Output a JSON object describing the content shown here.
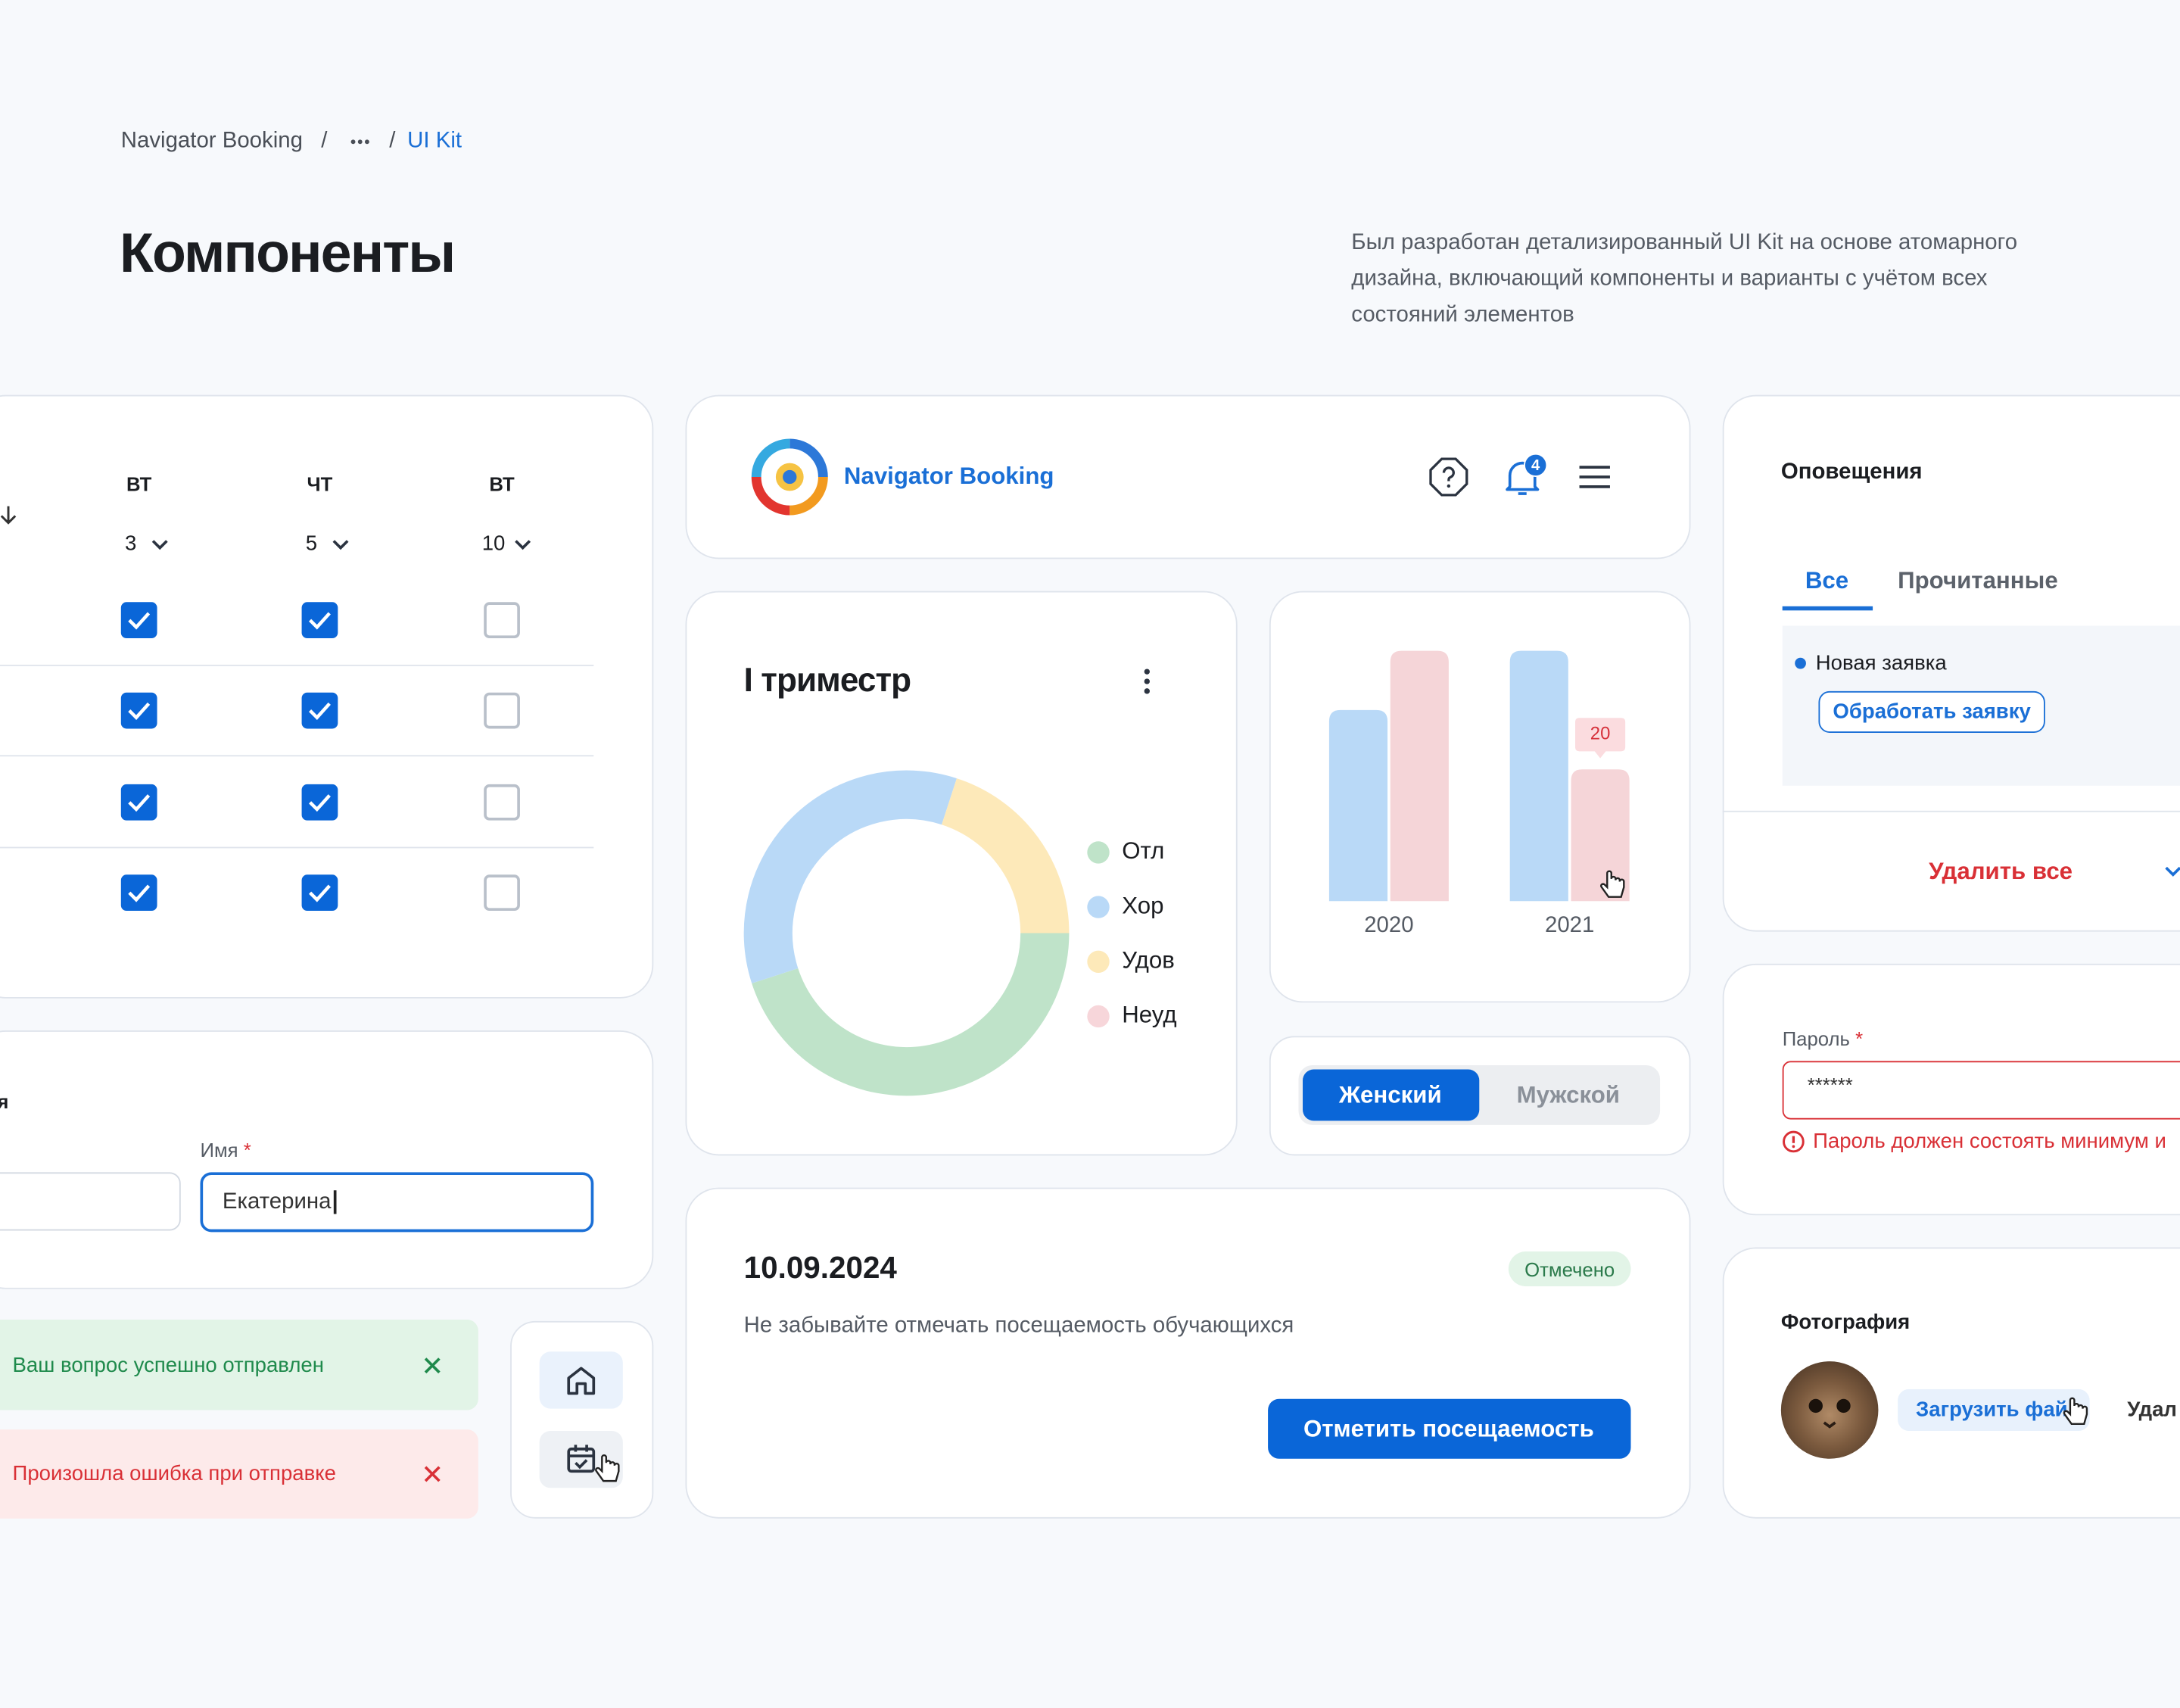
{
  "breadcrumb": {
    "items": [
      "Navigator Booking",
      "UI Kit"
    ],
    "separator": "/"
  },
  "header": {
    "title": "Компоненты",
    "description": "Был разработан детализированный UI Kit на основе атомарного дизайна, включающий компоненты и варианты с учётом всех состояний элементов"
  },
  "table": {
    "columns": [
      {
        "day": "ВТ",
        "number": 3
      },
      {
        "day": "ЧТ",
        "number": 5
      },
      {
        "day": "ВТ",
        "number": 10
      }
    ],
    "rows": [
      [
        true,
        true,
        false
      ],
      [
        true,
        true,
        false
      ],
      [
        true,
        true,
        false
      ],
      [
        true,
        true,
        false
      ]
    ]
  },
  "form": {
    "section": "я",
    "field_label": "Имя",
    "required": "*",
    "value": "Екатерина"
  },
  "alerts": [
    {
      "kind": "success",
      "text": "Ваш вопрос успешно отправлен"
    },
    {
      "kind": "error",
      "text": "Произошла ошибка при отправке"
    }
  ],
  "app_header": {
    "brand": "Navigator Booking",
    "notifications": 4
  },
  "chart_data": [
    {
      "type": "donut",
      "title": "I триместр",
      "categories": [
        "Отл",
        "Хор",
        "Удов",
        "Неуд"
      ],
      "values": [
        45,
        35,
        20,
        0
      ],
      "colors": [
        "#bfe3c9",
        "#b9d9f7",
        "#fde9b9",
        "#f7d6da"
      ]
    },
    {
      "type": "bar",
      "categories": [
        "2020",
        "2021"
      ],
      "series": [
        {
          "color": "#b9d9f7",
          "values": [
            29,
            38
          ]
        },
        {
          "color": "#f5d5d8",
          "values": [
            38,
            20
          ]
        }
      ]
    }
  ],
  "segmented": [
    "Женский",
    "Мужской"
  ],
  "attendance": {
    "date": "10.09.2024",
    "status": "Отмечено",
    "text": "Не забывайте отмечать посещаемость обучающихся",
    "button": "Отметить посещаемость"
  },
  "notifications": {
    "title": "Оповещения",
    "tabs": [
      "Все",
      "Прочитанные"
    ],
    "item": "Новая заявка",
    "action": "Обработать заявку",
    "delete_all": "Удалить все"
  },
  "password": {
    "label": "Пароль",
    "required": "*",
    "value": "******",
    "error": "Пароль должен состоять минимум и"
  },
  "photo": {
    "title": "Фотография",
    "upload": "Загрузить файл",
    "delete": "Удал"
  }
}
